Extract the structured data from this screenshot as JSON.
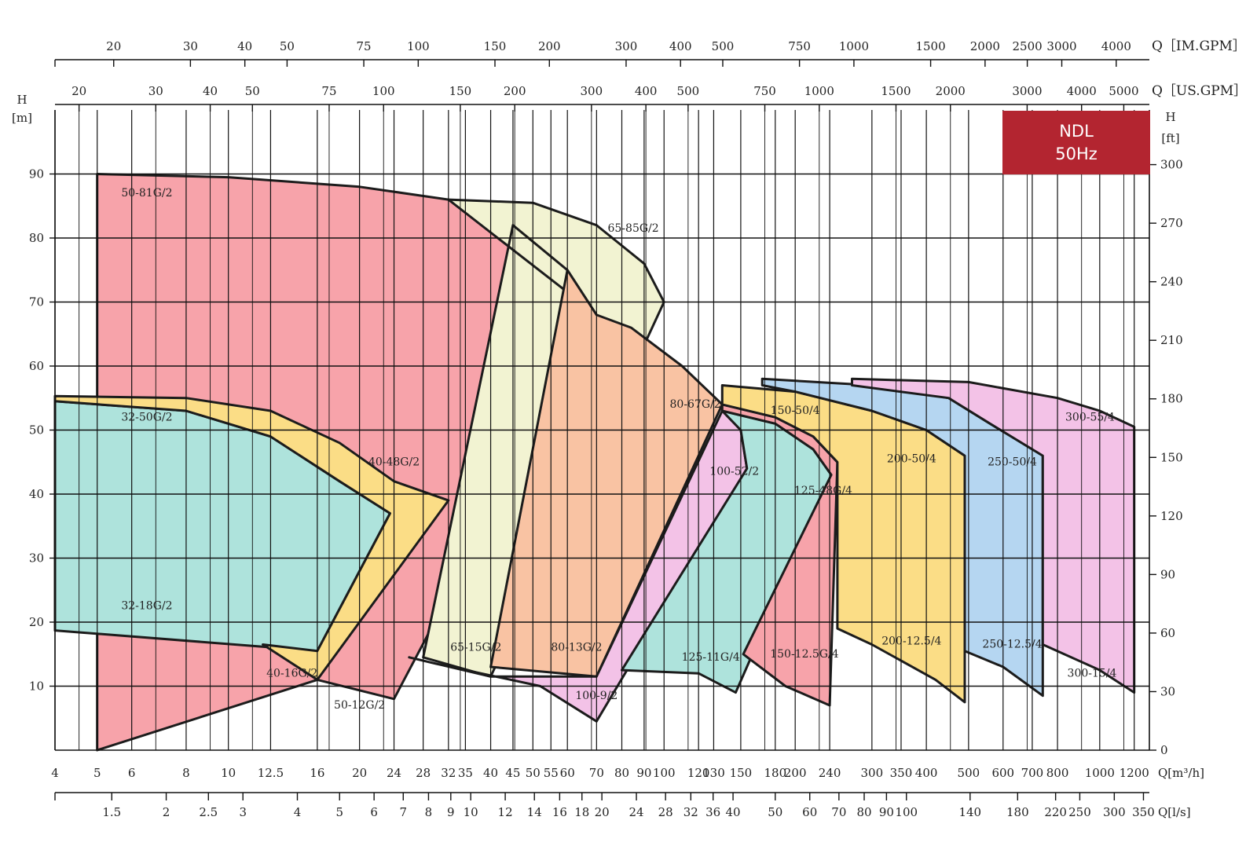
{
  "chart_data": {
    "type": "area",
    "title": "",
    "badge": {
      "line1": "NDL",
      "line2": "50Hz",
      "color": "#b32530"
    },
    "x_scale": "log",
    "xlim": [
      4,
      1300
    ],
    "ylim": [
      0,
      100
    ],
    "ylim_ft": [
      0,
      328
    ],
    "ylabel_left": "H\n[m]",
    "ylabel_right": "H\n[ft]",
    "y_ticks": [
      10,
      20,
      30,
      40,
      50,
      60,
      70,
      80,
      90
    ],
    "ft_ticks": [
      0,
      30,
      60,
      90,
      120,
      150,
      180,
      210,
      240,
      270,
      300
    ],
    "x_ticks_m3h": [
      "4",
      "5",
      "6",
      "8",
      "10",
      "12.5",
      "16",
      "20",
      "24",
      "28",
      "32",
      "35",
      "40",
      "45",
      "50",
      "55",
      "60",
      "70",
      "80",
      "90",
      "100",
      "120",
      "130",
      "150",
      "180",
      "200",
      "240",
      "300",
      "350",
      "400",
      "500",
      "600",
      "700",
      "800",
      "1000",
      "1200"
    ],
    "x_unit_m3h": "Q[m³/h]",
    "x_ticks_ls": [
      "1.5",
      "2",
      "2.5",
      "3",
      "4",
      "5",
      "6",
      "7",
      "8",
      "9",
      "10",
      "12",
      "14",
      "16",
      "18",
      "20",
      "24",
      "28",
      "32",
      "36",
      "40",
      "50",
      "60",
      "70",
      "80",
      "90",
      "100",
      "140",
      "180",
      "220",
      "250",
      "300",
      "350"
    ],
    "x_unit_ls": "Q[l/s]",
    "x_ticks_usgpm": [
      "20",
      "30",
      "40",
      "50",
      "75",
      "100",
      "150",
      "200",
      "300",
      "400",
      "500",
      "750",
      "1000",
      "1500",
      "2000",
      "3000",
      "4000",
      "5000"
    ],
    "x_unit_usgpm": "Q［US.GPM］",
    "x_ticks_imgpm": [
      "20",
      "30",
      "40",
      "50",
      "75",
      "100",
      "150",
      "200",
      "300",
      "400",
      "500",
      "750",
      "1000",
      "1500",
      "2000",
      "2500",
      "3000",
      "4000"
    ],
    "x_unit_imgpm": "Q［IM.GPM］",
    "colors": {
      "red": "#f7a3aa",
      "cream": "#f2f3d2",
      "teal": "#aee3dc",
      "yellow": "#fbdd86",
      "orange": "#f9c3a3",
      "pink": "#f3c2e7",
      "blue": "#b5d6f1"
    },
    "series": [
      {
        "name": "50-81G/2",
        "low_name": "50-12G/2",
        "color": "red",
        "label_at": [
          6.5,
          86.5
        ],
        "low_label_at": [
          20,
          6.5
        ],
        "points": [
          [
            5,
            0
          ],
          [
            5,
            90
          ],
          [
            10,
            89.5
          ],
          [
            20,
            88
          ],
          [
            32,
            86
          ],
          [
            45,
            82
          ],
          [
            60,
            75
          ],
          [
            70,
            68
          ],
          [
            24,
            8
          ],
          [
            16,
            11
          ]
        ]
      },
      {
        "name": "65-85G/2",
        "low_name": "65-15G/2",
        "color": "cream",
        "label_at": [
          85,
          81
        ],
        "low_label_at": [
          37,
          15.5
        ],
        "points": [
          [
            32,
            86
          ],
          [
            50,
            85.5
          ],
          [
            70,
            82
          ],
          [
            90,
            76
          ],
          [
            100,
            70
          ],
          [
            40,
            11.5
          ],
          [
            28,
            14.5
          ],
          [
            45,
            82
          ],
          [
            60,
            75
          ],
          [
            70,
            68
          ]
        ]
      },
      {
        "name": "32-50G/2",
        "low_name": "32-18G/2",
        "color": "teal",
        "label_at": [
          6.5,
          51.5
        ],
        "low_label_at": [
          6.5,
          22
        ],
        "points": [
          [
            4,
            54.5
          ],
          [
            8,
            53
          ],
          [
            12.5,
            49
          ],
          [
            18,
            42
          ],
          [
            23.5,
            37
          ],
          [
            16,
            15.5
          ],
          [
            4,
            18.7
          ]
        ]
      },
      {
        "name": "40-48G/2",
        "low_name": "40-16G/2",
        "color": "yellow",
        "label_at": [
          24,
          44.5
        ],
        "low_label_at": [
          14,
          11.5
        ],
        "points": [
          [
            4,
            55.3
          ],
          [
            8,
            55
          ],
          [
            12.5,
            53
          ],
          [
            18,
            48
          ],
          [
            24,
            42
          ],
          [
            32,
            39
          ],
          [
            16,
            11
          ],
          [
            12,
            16.5
          ],
          [
            16,
            15.5
          ],
          [
            23.5,
            37
          ],
          [
            18,
            42
          ],
          [
            12.5,
            49
          ],
          [
            8,
            53
          ],
          [
            4,
            54.5
          ]
        ]
      },
      {
        "name": "80-67G/2",
        "low_name": "80-13G/2",
        "color": "orange",
        "label_at": [
          118,
          53.5
        ],
        "low_label_at": [
          63,
          15.5
        ],
        "points": [
          [
            84,
            66
          ],
          [
            110,
            60
          ],
          [
            136,
            54
          ],
          [
            70,
            11.5
          ],
          [
            40,
            13
          ],
          [
            60,
            75
          ],
          [
            70,
            68
          ]
        ]
      },
      {
        "name": "100-52/2",
        "low_name": "100-9/2",
        "color": "pink",
        "label_at": [
          145,
          43
        ],
        "low_label_at": [
          70,
          8
        ],
        "points": [
          [
            136,
            53
          ],
          [
            150,
            50
          ],
          [
            155,
            44
          ],
          [
            70,
            4.5
          ],
          [
            52,
            10
          ],
          [
            30,
            13.5
          ],
          [
            26,
            14.5
          ],
          [
            40,
            11.5
          ],
          [
            70,
            11.5
          ]
        ]
      },
      {
        "name": "125-48G/4",
        "low_name": "125-11G/4",
        "color": "teal",
        "label_at": [
          232,
          40
        ],
        "low_label_at": [
          128,
          14
        ],
        "points": [
          [
            136,
            53
          ],
          [
            180,
            51
          ],
          [
            220,
            47
          ],
          [
            242,
            43
          ],
          [
            146,
            9
          ],
          [
            120,
            12
          ],
          [
            80,
            12.5
          ],
          [
            155,
            44
          ],
          [
            150,
            50
          ]
        ]
      },
      {
        "name": "150-50/4",
        "low_name": "150-12.5G/4",
        "color": "red",
        "label_at": [
          200,
          52.5
        ],
        "low_label_at": [
          210,
          14.5
        ],
        "points": [
          [
            136,
            54
          ],
          [
            180,
            52
          ],
          [
            220,
            49
          ],
          [
            250,
            45
          ],
          [
            240,
            7
          ],
          [
            190,
            10
          ],
          [
            152,
            15
          ],
          [
            242,
            43
          ],
          [
            220,
            47
          ],
          [
            180,
            51
          ],
          [
            136,
            53
          ]
        ]
      },
      {
        "name": "150-50/4",
        "low_name": "",
        "color": "yellow",
        "label_at": [
          200,
          52.5
        ],
        "low_label_at": [
          0,
          0
        ],
        "points": [
          [
            136,
            57
          ],
          [
            200,
            56
          ],
          [
            300,
            53
          ],
          [
            400,
            50
          ],
          [
            490,
            46
          ],
          [
            490,
            7.5
          ],
          [
            420,
            11
          ],
          [
            300,
            16.5
          ],
          [
            250,
            19
          ],
          [
            250,
            45
          ],
          [
            220,
            49
          ],
          [
            180,
            52
          ],
          [
            136,
            54
          ]
        ]
      },
      {
        "name": "200-50/4",
        "low_name": "200-12.5/4",
        "color": "yellow",
        "label_at": [
          370,
          45
        ],
        "low_label_at": [
          370,
          16.5
        ],
        "points": []
      },
      {
        "name": "250-50/4",
        "low_name": "250-12.5/4",
        "color": "blue",
        "label_at": [
          630,
          44.5
        ],
        "low_label_at": [
          630,
          16
        ],
        "points": [
          [
            168,
            58
          ],
          [
            300,
            57
          ],
          [
            450,
            55
          ],
          [
            560,
            51
          ],
          [
            740,
            46
          ],
          [
            740,
            8.5
          ],
          [
            600,
            13
          ],
          [
            490,
            15.5
          ],
          [
            490,
            46
          ],
          [
            400,
            50
          ],
          [
            300,
            53
          ],
          [
            200,
            56
          ],
          [
            168,
            57
          ]
        ]
      },
      {
        "name": "300-55/4",
        "low_name": "300-15/4",
        "color": "pink",
        "label_at": [
          950,
          51.5
        ],
        "low_label_at": [
          960,
          11.5
        ],
        "points": [
          [
            270,
            58
          ],
          [
            500,
            57.5
          ],
          [
            800,
            55
          ],
          [
            1000,
            53
          ],
          [
            1200,
            50.5
          ],
          [
            1200,
            9
          ],
          [
            1000,
            12.5
          ],
          [
            740,
            16.5
          ],
          [
            740,
            46
          ],
          [
            560,
            51
          ],
          [
            450,
            55
          ],
          [
            270,
            57
          ]
        ]
      }
    ]
  }
}
